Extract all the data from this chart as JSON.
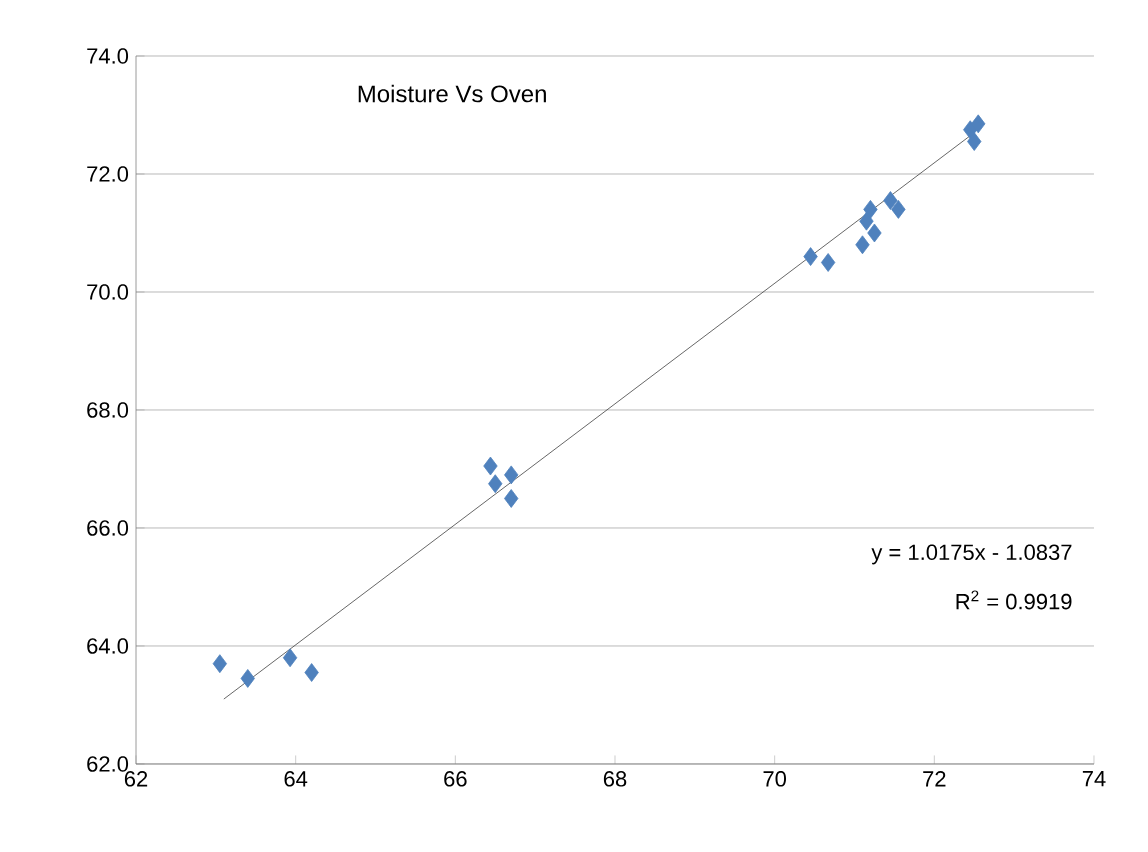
{
  "chart_data": {
    "type": "scatter",
    "title": "Moisture Vs Oven",
    "annotations": [
      "y = 1.0175x - 1.0837",
      "R$^{2}$ = 0.9919"
    ],
    "series": [
      {
        "color": "#4f81bd",
        "marker": "diamond",
        "x": [
          63.05,
          63.4,
          63.93,
          64.2,
          66.44,
          66.5,
          66.7,
          66.7,
          70.45,
          70.67,
          71.1,
          71.15,
          71.2,
          71.25,
          71.45,
          71.55,
          72.45,
          72.55,
          72.5
        ],
        "values": [
          63.7,
          63.45,
          63.8,
          63.55,
          67.05,
          66.75,
          66.9,
          66.5,
          70.6,
          70.5,
          70.8,
          71.2,
          71.4,
          71.0,
          71.55,
          71.4,
          72.75,
          72.85,
          72.55
        ]
      },
      {
        "type": "line",
        "color": "#404040",
        "marker": "none",
        "x": [
          63.1,
          72.5
        ],
        "values": [
          63.1,
          72.7
        ]
      }
    ],
    "xlim": [
      62,
      74
    ],
    "xticks": [
      62,
      64,
      66,
      68,
      70,
      72,
      74
    ],
    "ylim": [
      62,
      74
    ],
    "yticks": [
      {
        "value": 62,
        "label": "62.0"
      },
      {
        "value": 64,
        "label": "64.0"
      },
      {
        "value": 66,
        "label": "66.0"
      },
      {
        "value": 68,
        "label": "68.0"
      },
      {
        "value": 70,
        "label": "70.0"
      },
      {
        "value": 72,
        "label": "72.0"
      },
      {
        "value": 74,
        "label": "74.0"
      }
    ],
    "grid": "y"
  }
}
